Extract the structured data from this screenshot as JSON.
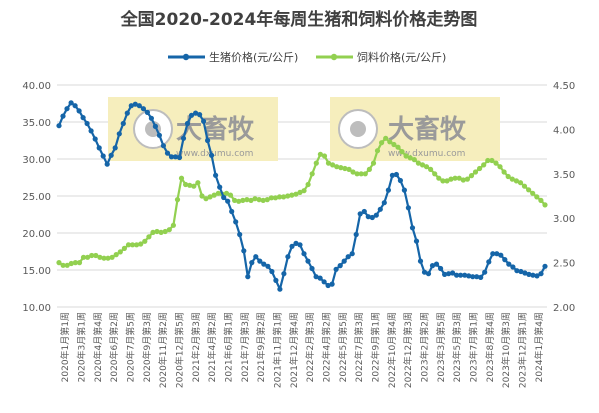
{
  "chart_data": {
    "type": "line",
    "title": "全国2020-2024年每周生猪和饲料价格走势图",
    "watermark": {
      "brand": "大畜牧",
      "url": "www.dxumu.com"
    },
    "ylim_left": [
      10,
      40
    ],
    "yticks_left": [
      "10.00",
      "15.00",
      "20.00",
      "25.00",
      "30.00",
      "35.00",
      "40.00"
    ],
    "ylim_right": [
      2.0,
      4.5
    ],
    "yticks_right": [
      "2.00",
      "2.50",
      "3.00",
      "3.50",
      "4.00",
      "4.50"
    ],
    "grid": "horizontal",
    "legend_position": "top-center",
    "colors": {
      "hog": "#1565a8",
      "feed": "#92d050",
      "watermark_box": "#f6eebd",
      "grid": "#d9d9d9",
      "title": "#404040"
    },
    "x_labels": [
      "2020年1月第1周",
      "2020年3月第1周",
      "2020年4月第4周",
      "2020年6月第2周",
      "2020年7月第5周",
      "2020年9月第3周",
      "2020年11月第2周",
      "2020年12月第5周",
      "2021年2月第3周",
      "2021年4月第2周",
      "2021年6月第1周",
      "2021年7月第3周",
      "2021年9月第2周",
      "2021年11月第1周",
      "2021年12月第4周",
      "2022年2月第3周",
      "2022年4月第2周",
      "2022年5月第5周",
      "2022年7月第3周",
      "2022年9月第1周",
      "2022年10月第4周",
      "2022年12月第3周",
      "2023年2月第2周",
      "2023年3月第5周",
      "2023年5月第3周",
      "2023年7月第1周",
      "2023年8月第4周",
      "2023年10月第3周",
      "2023年12月第1周",
      "2024年1月第4周"
    ],
    "series": [
      {
        "name": "生猪价格(元/公斤)",
        "axis": "left",
        "values": [
          34.5,
          35.8,
          36.8,
          37.6,
          37.2,
          36.5,
          35.6,
          34.8,
          33.8,
          32.7,
          31.5,
          30.4,
          29.3,
          30.5,
          31.5,
          33.4,
          34.8,
          36.2,
          37.2,
          37.4,
          37.2,
          36.8,
          36.3,
          35.5,
          34.4,
          33.2,
          31.8,
          30.8,
          30.3,
          30.3,
          30.2,
          32.8,
          34.8,
          35.9,
          36.2,
          36.0,
          35.1,
          32.5,
          30.5,
          27.8,
          26.2,
          24.8,
          24.3,
          22.9,
          21.5,
          19.8,
          17.6,
          14.1,
          16.0,
          16.8,
          16.2,
          15.8,
          15.5,
          14.8,
          13.6,
          12.4,
          14.5,
          16.8,
          18.2,
          18.6,
          18.4,
          17.2,
          16.2,
          15.2,
          14.1,
          13.9,
          13.4,
          12.9,
          13.1,
          15.1,
          15.6,
          16.2,
          16.8,
          17.2,
          19.8,
          22.6,
          22.9,
          22.2,
          22.1,
          22.4,
          23.2,
          24.1,
          25.8,
          27.8,
          27.9,
          27.1,
          25.8,
          23.4,
          20.7,
          18.9,
          16.2,
          14.7,
          14.5,
          15.6,
          15.8,
          15.2,
          14.4,
          14.5,
          14.6,
          14.3,
          14.3,
          14.3,
          14.2,
          14.1,
          14.1,
          14.0,
          14.7,
          16.1,
          17.2,
          17.2,
          17.0,
          16.4,
          15.8,
          15.4,
          14.9,
          14.8,
          14.6,
          14.4,
          14.3,
          14.2,
          14.5,
          15.5
        ]
      },
      {
        "name": "饲料价格(元/公斤)",
        "axis": "right",
        "values": [
          2.5,
          2.47,
          2.47,
          2.49,
          2.5,
          2.5,
          2.56,
          2.56,
          2.58,
          2.58,
          2.56,
          2.55,
          2.55,
          2.56,
          2.59,
          2.62,
          2.66,
          2.7,
          2.7,
          2.7,
          2.71,
          2.74,
          2.79,
          2.84,
          2.85,
          2.84,
          2.85,
          2.87,
          2.92,
          3.21,
          3.45,
          3.38,
          3.37,
          3.36,
          3.4,
          3.25,
          3.22,
          3.24,
          3.26,
          3.28,
          3.27,
          3.28,
          3.26,
          3.2,
          3.19,
          3.2,
          3.21,
          3.2,
          3.22,
          3.21,
          3.2,
          3.21,
          3.23,
          3.23,
          3.24,
          3.24,
          3.25,
          3.26,
          3.27,
          3.29,
          3.31,
          3.38,
          3.5,
          3.62,
          3.72,
          3.7,
          3.62,
          3.6,
          3.58,
          3.57,
          3.56,
          3.55,
          3.52,
          3.5,
          3.5,
          3.5,
          3.55,
          3.62,
          3.76,
          3.85,
          3.9,
          3.86,
          3.83,
          3.8,
          3.75,
          3.7,
          3.68,
          3.66,
          3.62,
          3.6,
          3.58,
          3.55,
          3.5,
          3.45,
          3.42,
          3.42,
          3.44,
          3.45,
          3.45,
          3.43,
          3.44,
          3.48,
          3.52,
          3.56,
          3.6,
          3.65,
          3.65,
          3.62,
          3.58,
          3.52,
          3.47,
          3.44,
          3.42,
          3.4,
          3.36,
          3.32,
          3.28,
          3.24,
          3.2,
          3.15
        ]
      }
    ]
  }
}
